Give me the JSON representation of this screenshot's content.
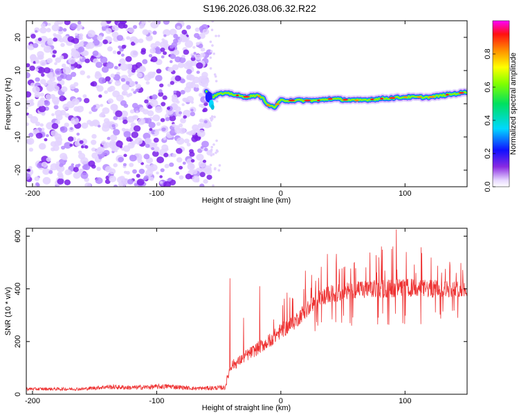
{
  "title": "S196.2026.038.06.32.R22",
  "chart_data": [
    {
      "type": "heatmap",
      "name": "spectrogram",
      "xlabel": "Height of straight line (km)",
      "ylabel": "Frequency (Hz)",
      "xlim": [
        -205,
        150
      ],
      "ylim": [
        -25,
        25
      ],
      "xticks": [
        -200,
        -100,
        0,
        100
      ],
      "yticks": [
        -20,
        -10,
        0,
        10,
        20
      ],
      "noise_region_x": [
        -205,
        -57
      ],
      "signal_track": {
        "x": [
          -60,
          -55,
          -50,
          -40,
          -30,
          -20,
          -15,
          -10,
          -5,
          0,
          10,
          20,
          30,
          40,
          60,
          80,
          100,
          120,
          140,
          150
        ],
        "freq": [
          4,
          2,
          3,
          3,
          2,
          2.5,
          2,
          -0.5,
          -1,
          1,
          1,
          1,
          1,
          1.5,
          1,
          1.5,
          2,
          2,
          3,
          3.5
        ]
      },
      "colorbar": {
        "label": "Normalized spectral amplitude",
        "range": [
          0,
          1
        ],
        "ticks": [
          0.0,
          0.2,
          0.4,
          0.6,
          0.8
        ],
        "tick_labels": [
          "0.0",
          "0.2",
          "0.4",
          "0.6",
          "0.8"
        ]
      }
    },
    {
      "type": "line",
      "name": "snr",
      "xlabel": "Height of straight line (km)",
      "ylabel": "SNR (10 * v/v)",
      "xlim": [
        -205,
        150
      ],
      "ylim": [
        0,
        630
      ],
      "xticks": [
        -200,
        -100,
        0,
        100
      ],
      "yticks": [
        0,
        200,
        400,
        600
      ],
      "color": "#ee3333",
      "envelope": {
        "x": [
          -205,
          -160,
          -140,
          -120,
          -90,
          -70,
          -45,
          -42,
          -40,
          -35,
          -30,
          -20,
          -10,
          0,
          10,
          20,
          30,
          40,
          60,
          80,
          100,
          120,
          150
        ],
        "baseline": [
          20,
          20,
          28,
          25,
          30,
          22,
          25,
          80,
          110,
          120,
          140,
          170,
          200,
          240,
          270,
          320,
          360,
          380,
          395,
          400,
          405,
          400,
          400
        ],
        "noise": [
          12,
          12,
          18,
          18,
          20,
          14,
          18,
          40,
          40,
          40,
          45,
          50,
          55,
          60,
          60,
          65,
          65,
          70,
          70,
          70,
          70,
          70,
          60
        ]
      },
      "spikes": [
        {
          "x": -41,
          "y": 440
        },
        {
          "x": -30,
          "y": 290
        },
        {
          "x": -17,
          "y": 410
        },
        {
          "x": 93,
          "y": 625
        }
      ]
    }
  ]
}
